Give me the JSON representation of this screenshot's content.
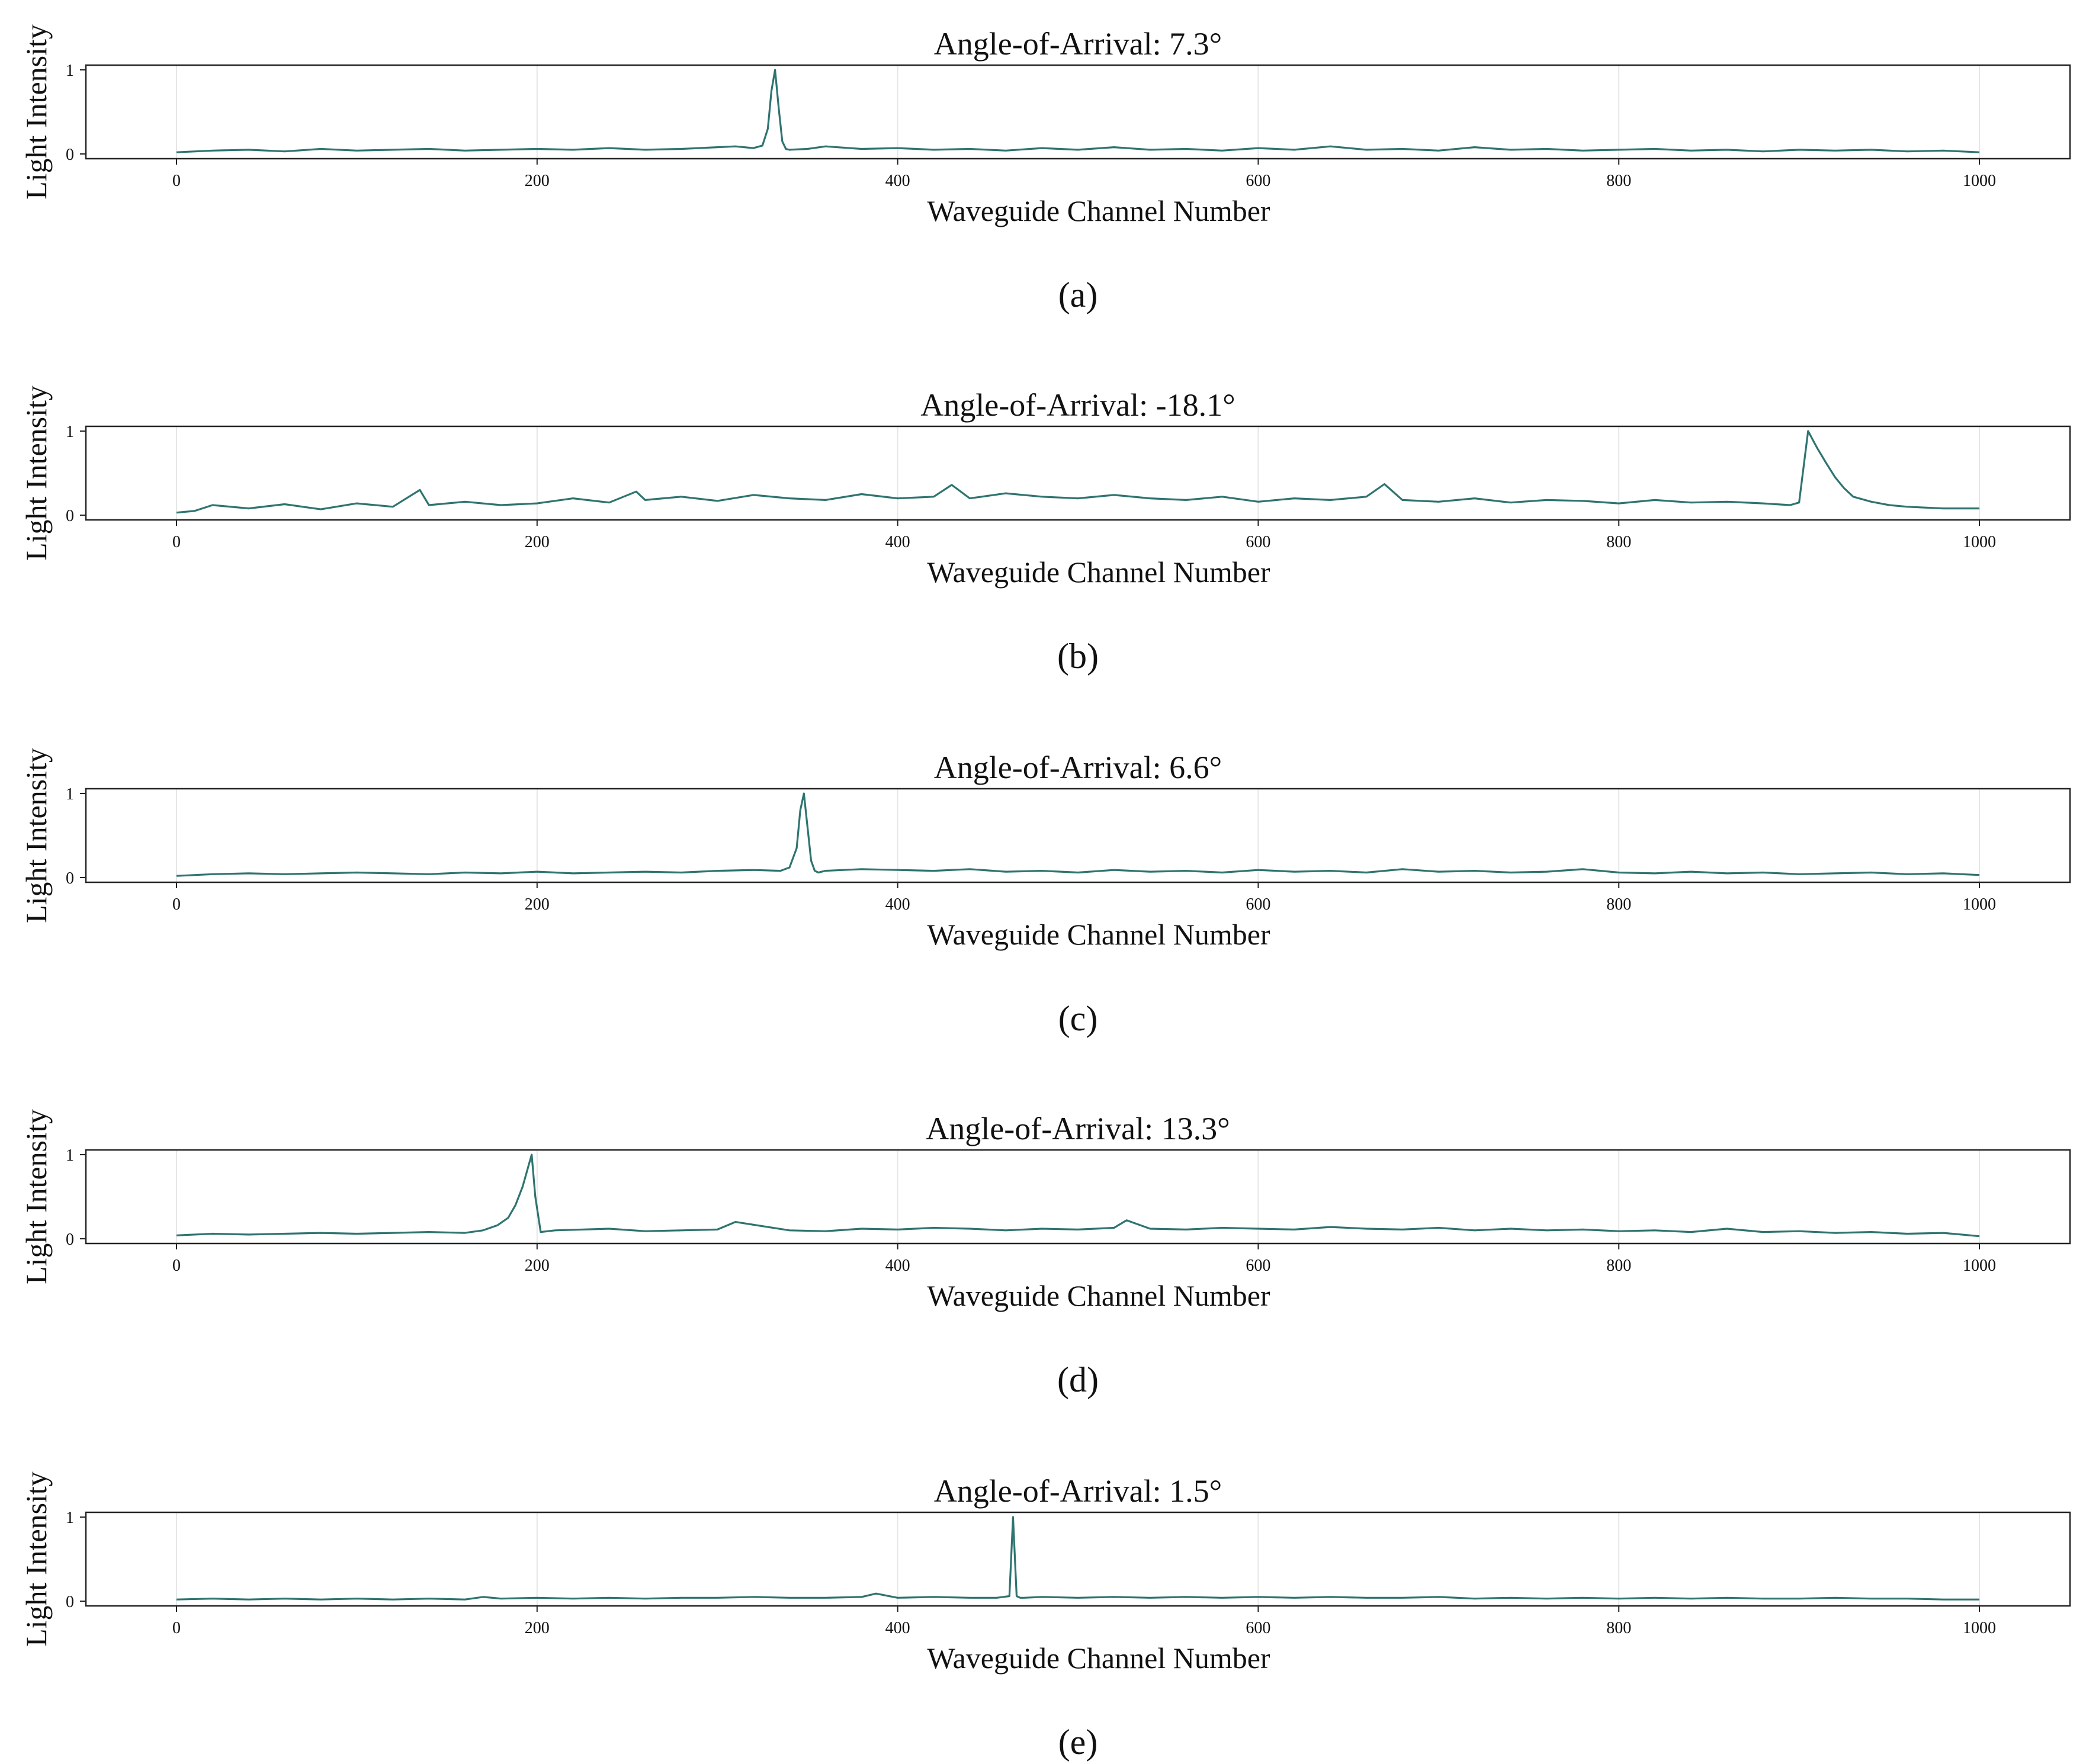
{
  "chart_data": [
    {
      "panel": "a",
      "type": "line",
      "title": "Angle-of-Arrival: 7.3°",
      "xlabel": "Waveguide Channel Number",
      "ylabel": "Light Intensity",
      "caption": "(a)",
      "xlim": [
        0,
        1000
      ],
      "ylim": [
        0,
        1
      ],
      "xticks": [
        0,
        200,
        400,
        600,
        800,
        1000
      ],
      "yticks": [
        0,
        1
      ],
      "grid": "vertical",
      "color": "#2e7470",
      "series": [
        {
          "x": [
            0,
            20,
            40,
            60,
            80,
            100,
            120,
            140,
            160,
            180,
            200,
            220,
            240,
            260,
            280,
            300,
            310,
            320,
            325,
            328,
            330,
            332,
            334,
            336,
            338,
            340,
            350,
            360,
            380,
            400,
            420,
            440,
            460,
            480,
            500,
            520,
            540,
            560,
            580,
            600,
            620,
            640,
            660,
            680,
            700,
            720,
            740,
            760,
            780,
            800,
            820,
            840,
            860,
            880,
            900,
            920,
            940,
            960,
            980,
            1000
          ],
          "y": [
            0.02,
            0.04,
            0.05,
            0.03,
            0.06,
            0.04,
            0.05,
            0.06,
            0.04,
            0.05,
            0.06,
            0.05,
            0.07,
            0.05,
            0.06,
            0.08,
            0.09,
            0.07,
            0.1,
            0.3,
            0.75,
            1.0,
            0.55,
            0.15,
            0.06,
            0.05,
            0.06,
            0.09,
            0.06,
            0.07,
            0.05,
            0.06,
            0.04,
            0.07,
            0.05,
            0.08,
            0.05,
            0.06,
            0.04,
            0.07,
            0.05,
            0.09,
            0.05,
            0.06,
            0.04,
            0.08,
            0.05,
            0.06,
            0.04,
            0.05,
            0.06,
            0.04,
            0.05,
            0.03,
            0.05,
            0.04,
            0.05,
            0.03,
            0.04,
            0.02
          ]
        }
      ]
    },
    {
      "panel": "b",
      "type": "line",
      "title": "Angle-of-Arrival: -18.1°",
      "xlabel": "Waveguide Channel Number",
      "ylabel": "Light Intensity",
      "caption": "(b)",
      "xlim": [
        0,
        1000
      ],
      "ylim": [
        0,
        1
      ],
      "xticks": [
        0,
        200,
        400,
        600,
        800,
        1000
      ],
      "yticks": [
        0,
        1
      ],
      "grid": "vertical",
      "color": "#2e7470",
      "series": [
        {
          "x": [
            0,
            10,
            20,
            40,
            60,
            80,
            100,
            120,
            135,
            140,
            160,
            180,
            200,
            220,
            240,
            255,
            260,
            280,
            300,
            320,
            340,
            360,
            380,
            400,
            420,
            430,
            440,
            460,
            480,
            500,
            520,
            540,
            560,
            580,
            600,
            620,
            640,
            660,
            670,
            680,
            700,
            720,
            740,
            760,
            780,
            800,
            820,
            840,
            860,
            880,
            895,
            900,
            905,
            910,
            915,
            920,
            925,
            930,
            940,
            950,
            960,
            980,
            1000
          ],
          "y": [
            0.03,
            0.05,
            0.12,
            0.08,
            0.13,
            0.07,
            0.14,
            0.1,
            0.3,
            0.12,
            0.16,
            0.12,
            0.14,
            0.2,
            0.15,
            0.28,
            0.18,
            0.22,
            0.17,
            0.24,
            0.2,
            0.18,
            0.25,
            0.2,
            0.22,
            0.36,
            0.2,
            0.26,
            0.22,
            0.2,
            0.24,
            0.2,
            0.18,
            0.22,
            0.16,
            0.2,
            0.18,
            0.22,
            0.37,
            0.18,
            0.16,
            0.2,
            0.15,
            0.18,
            0.17,
            0.14,
            0.18,
            0.15,
            0.16,
            0.14,
            0.12,
            0.15,
            1.0,
            0.8,
            0.62,
            0.45,
            0.32,
            0.22,
            0.16,
            0.12,
            0.1,
            0.08,
            0.08
          ]
        }
      ]
    },
    {
      "panel": "c",
      "type": "line",
      "title": "Angle-of-Arrival: 6.6°",
      "xlabel": "Waveguide Channel Number",
      "ylabel": "Light Intensity",
      "caption": "(c)",
      "xlim": [
        0,
        1000
      ],
      "ylim": [
        0,
        1
      ],
      "xticks": [
        0,
        200,
        400,
        600,
        800,
        1000
      ],
      "yticks": [
        0,
        1
      ],
      "grid": "vertical",
      "color": "#2e7470",
      "series": [
        {
          "x": [
            0,
            20,
            40,
            60,
            80,
            100,
            120,
            140,
            160,
            180,
            200,
            220,
            240,
            260,
            280,
            300,
            320,
            335,
            340,
            344,
            346,
            348,
            350,
            352,
            354,
            356,
            360,
            380,
            400,
            420,
            440,
            460,
            480,
            500,
            520,
            540,
            560,
            580,
            600,
            620,
            640,
            660,
            680,
            700,
            720,
            740,
            760,
            780,
            800,
            820,
            840,
            860,
            880,
            900,
            920,
            940,
            960,
            980,
            1000
          ],
          "y": [
            0.02,
            0.04,
            0.05,
            0.04,
            0.05,
            0.06,
            0.05,
            0.04,
            0.06,
            0.05,
            0.07,
            0.05,
            0.06,
            0.07,
            0.06,
            0.08,
            0.09,
            0.08,
            0.12,
            0.35,
            0.8,
            1.0,
            0.6,
            0.2,
            0.08,
            0.06,
            0.08,
            0.1,
            0.09,
            0.08,
            0.1,
            0.07,
            0.08,
            0.06,
            0.09,
            0.07,
            0.08,
            0.06,
            0.09,
            0.07,
            0.08,
            0.06,
            0.1,
            0.07,
            0.08,
            0.06,
            0.07,
            0.1,
            0.06,
            0.05,
            0.07,
            0.05,
            0.06,
            0.04,
            0.05,
            0.06,
            0.04,
            0.05,
            0.03
          ]
        }
      ]
    },
    {
      "panel": "d",
      "type": "line",
      "title": "Angle-of-Arrival: 13.3°",
      "xlabel": "Waveguide Channel Number",
      "ylabel": "Light Intensity",
      "caption": "(d)",
      "xlim": [
        0,
        1000
      ],
      "ylim": [
        0,
        1
      ],
      "xticks": [
        0,
        200,
        400,
        600,
        800,
        1000
      ],
      "yticks": [
        0,
        1
      ],
      "grid": "vertical",
      "color": "#2e7470",
      "series": [
        {
          "x": [
            0,
            20,
            40,
            60,
            80,
            100,
            120,
            140,
            160,
            170,
            178,
            184,
            188,
            192,
            195,
            197,
            199,
            202,
            210,
            240,
            260,
            280,
            300,
            310,
            340,
            360,
            380,
            400,
            420,
            440,
            460,
            480,
            500,
            520,
            527,
            540,
            560,
            580,
            600,
            620,
            640,
            660,
            680,
            700,
            720,
            740,
            760,
            780,
            800,
            820,
            840,
            860,
            880,
            900,
            920,
            940,
            960,
            980,
            1000
          ],
          "y": [
            0.04,
            0.06,
            0.05,
            0.06,
            0.07,
            0.06,
            0.07,
            0.08,
            0.07,
            0.1,
            0.16,
            0.25,
            0.4,
            0.62,
            0.85,
            1.0,
            0.5,
            0.08,
            0.1,
            0.12,
            0.09,
            0.1,
            0.11,
            0.2,
            0.1,
            0.09,
            0.12,
            0.11,
            0.13,
            0.12,
            0.1,
            0.12,
            0.11,
            0.13,
            0.22,
            0.12,
            0.11,
            0.13,
            0.12,
            0.11,
            0.14,
            0.12,
            0.11,
            0.13,
            0.1,
            0.12,
            0.1,
            0.11,
            0.09,
            0.1,
            0.08,
            0.12,
            0.08,
            0.09,
            0.07,
            0.08,
            0.06,
            0.07,
            0.03
          ]
        }
      ]
    },
    {
      "panel": "e",
      "type": "line",
      "title": "Angle-of-Arrival: 1.5°",
      "xlabel": "Waveguide Channel Number",
      "ylabel": "Light Intensity",
      "caption": "(e)",
      "xlim": [
        0,
        1000
      ],
      "ylim": [
        0,
        1
      ],
      "xticks": [
        0,
        200,
        400,
        600,
        800,
        1000
      ],
      "yticks": [
        0,
        1
      ],
      "grid": "vertical",
      "color": "#2e7470",
      "series": [
        {
          "x": [
            0,
            20,
            40,
            60,
            80,
            100,
            120,
            140,
            160,
            170,
            180,
            200,
            220,
            240,
            260,
            280,
            300,
            320,
            340,
            360,
            380,
            388,
            400,
            420,
            440,
            455,
            462,
            464,
            466,
            468,
            470,
            480,
            500,
            520,
            540,
            560,
            580,
            600,
            620,
            640,
            660,
            680,
            700,
            720,
            740,
            760,
            780,
            800,
            820,
            840,
            860,
            880,
            900,
            920,
            940,
            960,
            980,
            1000
          ],
          "y": [
            0.02,
            0.03,
            0.02,
            0.03,
            0.02,
            0.03,
            0.02,
            0.03,
            0.02,
            0.05,
            0.03,
            0.04,
            0.03,
            0.04,
            0.03,
            0.04,
            0.04,
            0.05,
            0.04,
            0.04,
            0.05,
            0.09,
            0.04,
            0.05,
            0.04,
            0.04,
            0.06,
            1.0,
            0.06,
            0.04,
            0.04,
            0.05,
            0.04,
            0.05,
            0.04,
            0.05,
            0.04,
            0.05,
            0.04,
            0.05,
            0.04,
            0.04,
            0.05,
            0.03,
            0.04,
            0.03,
            0.04,
            0.03,
            0.04,
            0.03,
            0.04,
            0.03,
            0.03,
            0.04,
            0.03,
            0.03,
            0.02,
            0.02
          ]
        }
      ]
    }
  ]
}
